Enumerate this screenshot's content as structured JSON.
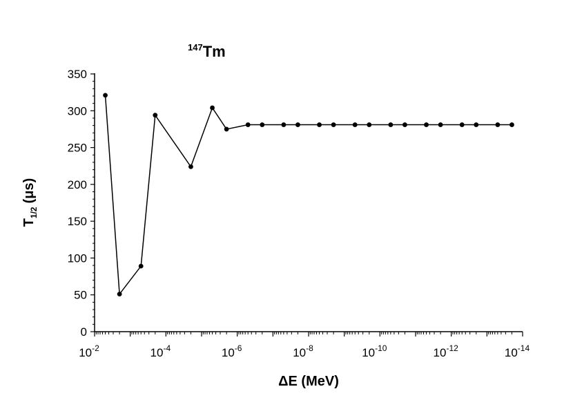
{
  "chart_data": {
    "type": "line",
    "title": {
      "superscript": "147",
      "text": "Tm"
    },
    "xlabel": "ΔE (MeV)",
    "ylabel": {
      "main": "T",
      "subscript": "1/2",
      "unit": "(μs)"
    },
    "x_scale": "log",
    "x_direction": "decreasing",
    "xlim": [
      0.01,
      1e-14
    ],
    "ylim": [
      0,
      350
    ],
    "y_ticks": [
      0,
      50,
      100,
      150,
      200,
      250,
      300,
      350
    ],
    "y_minor_step": 10,
    "x_ticks": [
      {
        "base": "10",
        "exp": "-2"
      },
      {
        "base": "10",
        "exp": "-4"
      },
      {
        "base": "10",
        "exp": "-6"
      },
      {
        "base": "10",
        "exp": "-8"
      },
      {
        "base": "10",
        "exp": "-10"
      },
      {
        "base": "10",
        "exp": "-12"
      },
      {
        "base": "10",
        "exp": "-14"
      }
    ],
    "grid": false,
    "marker": "circle",
    "series": [
      {
        "x": [
          0.005,
          0.002,
          0.0005,
          0.0002,
          2e-05,
          5e-06,
          2e-06,
          5e-07,
          2e-07,
          5e-08,
          2e-08,
          5e-09,
          2e-09,
          5e-10,
          2e-10,
          5e-11,
          2e-11,
          5e-12,
          2e-12,
          5e-13,
          2e-13,
          5e-14,
          2e-14
        ],
        "y": [
          321,
          51,
          89,
          294,
          224,
          304,
          275,
          281,
          281,
          281,
          281,
          281,
          281,
          281,
          281,
          281,
          281,
          281,
          281,
          281,
          281,
          281,
          281
        ]
      }
    ]
  }
}
